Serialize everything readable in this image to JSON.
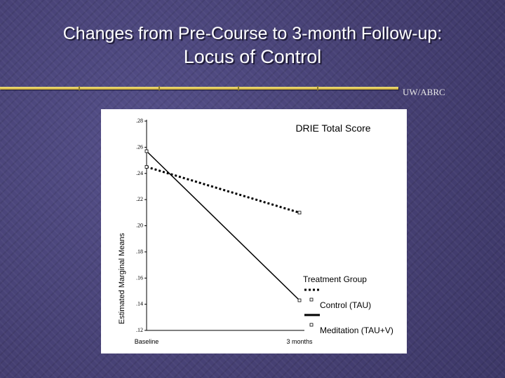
{
  "slide": {
    "title_line1": "Changes from Pre-Course to 3-month Follow-up:",
    "title_line2": "Locus of Control",
    "org_label": "UW/ABRC"
  },
  "chart_data": {
    "type": "line",
    "title": "DRIE Total Score",
    "xlabel": "",
    "ylabel": "Estimated Marginal Means",
    "categories": [
      "Baseline",
      "3 months"
    ],
    "ylim": [
      0.12,
      0.28
    ],
    "yticks": [
      0.12,
      0.14,
      0.16,
      0.18,
      0.2,
      0.22,
      0.24,
      0.26,
      0.28
    ],
    "ytick_labels": [
      ".12",
      ".14",
      ".16",
      ".18",
      ".20",
      ".22",
      ".24",
      ".26",
      ".28"
    ],
    "grid": false,
    "legend_title": "Treatment Group",
    "legend_position": "bottom-right",
    "series": [
      {
        "name": "Control (TAU)",
        "style": "dotted",
        "values": [
          0.245,
          0.21
        ]
      },
      {
        "name": "Meditation (TAU+V)",
        "style": "solid",
        "values": [
          0.257,
          0.143
        ]
      }
    ]
  },
  "colors": {
    "background": "#4a4478",
    "title_text": "#ffffff",
    "rule": "#e0c850",
    "chart_bg": "#ffffff",
    "ink": "#000000"
  }
}
